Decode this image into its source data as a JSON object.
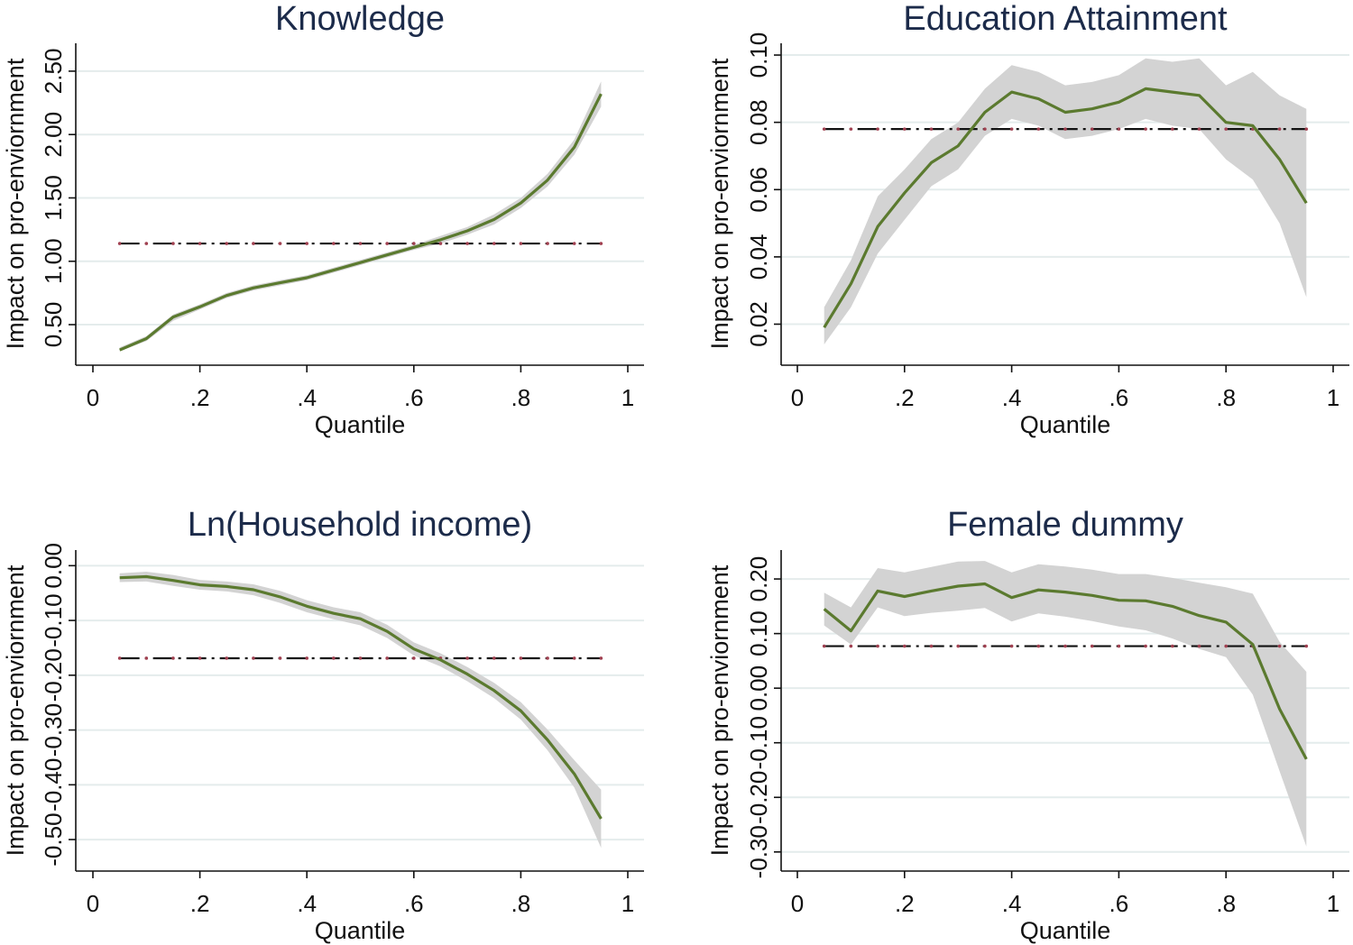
{
  "colors": {
    "line": "#5b7a2f",
    "band": "#d3d3d3",
    "grid": "#e4ecec",
    "ols_line": "#111111",
    "ols_dots": "#a04050",
    "title": "#1c2b4a",
    "axis": "#111111"
  },
  "chart_data": [
    {
      "type": "line",
      "title": "Knowledge",
      "xlabel": "Quantile",
      "ylabel": "Impact on pro-enviornment",
      "xlim": [
        0,
        1
      ],
      "ylim": [
        0.18,
        2.72
      ],
      "x_ticks": [
        0,
        0.2,
        0.4,
        0.6,
        0.8,
        1
      ],
      "x_tick_labels": [
        "0",
        ".2",
        ".4",
        ".6",
        ".8",
        "1"
      ],
      "y_ticks": [
        0.5,
        1.0,
        1.5,
        2.0,
        2.5
      ],
      "y_tick_labels": [
        "0.50",
        "1.00",
        "1.50",
        "2.00",
        "2.50"
      ],
      "grid": true,
      "x": [
        0.05,
        0.1,
        0.15,
        0.2,
        0.25,
        0.3,
        0.35,
        0.4,
        0.45,
        0.5,
        0.55,
        0.6,
        0.65,
        0.7,
        0.75,
        0.8,
        0.85,
        0.9,
        0.95
      ],
      "y": [
        0.3,
        0.39,
        0.56,
        0.64,
        0.73,
        0.79,
        0.83,
        0.87,
        0.93,
        0.99,
        1.05,
        1.11,
        1.17,
        1.24,
        1.33,
        1.46,
        1.64,
        1.9,
        2.32
      ],
      "ci_lower": [
        0.29,
        0.37,
        0.53,
        0.62,
        0.71,
        0.77,
        0.81,
        0.85,
        0.91,
        0.97,
        1.03,
        1.09,
        1.14,
        1.21,
        1.29,
        1.42,
        1.59,
        1.84,
        2.22
      ],
      "ci_upper": [
        0.32,
        0.41,
        0.58,
        0.66,
        0.75,
        0.81,
        0.85,
        0.89,
        0.95,
        1.01,
        1.07,
        1.13,
        1.2,
        1.27,
        1.37,
        1.5,
        1.69,
        1.96,
        2.42
      ],
      "ols_value": 1.14
    },
    {
      "type": "line",
      "title": "Education Attainment",
      "xlabel": "Quantile",
      "ylabel": "Impact on pro-enviornment",
      "xlim": [
        0,
        1
      ],
      "ylim": [
        0.0078,
        0.1035
      ],
      "x_ticks": [
        0,
        0.2,
        0.4,
        0.6,
        0.8,
        1
      ],
      "x_tick_labels": [
        "0",
        ".2",
        ".4",
        ".6",
        ".8",
        "1"
      ],
      "y_ticks": [
        0.02,
        0.04,
        0.06,
        0.08,
        0.1
      ],
      "y_tick_labels": [
        "0.02",
        "0.04",
        "0.06",
        "0.08",
        "0.10"
      ],
      "grid": true,
      "x": [
        0.05,
        0.1,
        0.15,
        0.2,
        0.25,
        0.3,
        0.35,
        0.4,
        0.45,
        0.5,
        0.55,
        0.6,
        0.65,
        0.7,
        0.75,
        0.8,
        0.85,
        0.9,
        0.95
      ],
      "y": [
        0.019,
        0.032,
        0.049,
        0.059,
        0.068,
        0.073,
        0.083,
        0.089,
        0.087,
        0.083,
        0.084,
        0.086,
        0.09,
        0.089,
        0.088,
        0.08,
        0.079,
        0.069,
        0.056
      ],
      "ci_lower": [
        0.014,
        0.025,
        0.041,
        0.051,
        0.061,
        0.066,
        0.076,
        0.081,
        0.079,
        0.075,
        0.076,
        0.078,
        0.081,
        0.079,
        0.078,
        0.069,
        0.063,
        0.05,
        0.028
      ],
      "ci_upper": [
        0.025,
        0.039,
        0.058,
        0.066,
        0.075,
        0.08,
        0.09,
        0.097,
        0.095,
        0.091,
        0.092,
        0.094,
        0.099,
        0.098,
        0.099,
        0.091,
        0.095,
        0.088,
        0.084
      ],
      "ols_value": 0.078
    },
    {
      "type": "line",
      "title": "Ln(Household income)",
      "xlabel": "Quantile",
      "ylabel": "Impact on pro-enviornment",
      "xlim": [
        0,
        1
      ],
      "ylim": [
        -0.5575,
        0.0285
      ],
      "x_ticks": [
        0,
        0.2,
        0.4,
        0.6,
        0.8,
        1
      ],
      "x_tick_labels": [
        "0",
        ".2",
        ".4",
        ".6",
        ".8",
        "1"
      ],
      "y_ticks": [
        -0.5,
        -0.4,
        -0.3,
        -0.2,
        -0.1,
        0.0
      ],
      "y_tick_labels": [
        "-0.50",
        "-0.40",
        "-0.30",
        "-0.20",
        "-0.10",
        "0.00"
      ],
      "grid": true,
      "x": [
        0.05,
        0.1,
        0.15,
        0.2,
        0.25,
        0.3,
        0.35,
        0.4,
        0.45,
        0.5,
        0.55,
        0.6,
        0.65,
        0.7,
        0.75,
        0.8,
        0.85,
        0.9,
        0.95
      ],
      "y": [
        -0.022,
        -0.02,
        -0.027,
        -0.035,
        -0.038,
        -0.044,
        -0.057,
        -0.074,
        -0.087,
        -0.097,
        -0.12,
        -0.152,
        -0.172,
        -0.198,
        -0.228,
        -0.265,
        -0.318,
        -0.38,
        -0.462
      ],
      "ci_lower": [
        -0.03,
        -0.029,
        -0.037,
        -0.044,
        -0.047,
        -0.054,
        -0.068,
        -0.085,
        -0.098,
        -0.109,
        -0.132,
        -0.164,
        -0.184,
        -0.211,
        -0.242,
        -0.281,
        -0.337,
        -0.405,
        -0.515
      ],
      "ci_upper": [
        -0.014,
        -0.011,
        -0.017,
        -0.026,
        -0.029,
        -0.034,
        -0.046,
        -0.063,
        -0.076,
        -0.085,
        -0.108,
        -0.14,
        -0.16,
        -0.185,
        -0.214,
        -0.249,
        -0.299,
        -0.355,
        -0.409
      ],
      "ols_value": -0.169
    },
    {
      "type": "line",
      "title": "Female dummy",
      "xlabel": "Quantile",
      "ylabel": "Impact on pro-enviornment",
      "xlim": [
        0,
        1
      ],
      "ylim": [
        -0.335,
        0.253
      ],
      "x_ticks": [
        0,
        0.2,
        0.4,
        0.6,
        0.8,
        1
      ],
      "x_tick_labels": [
        "0",
        ".2",
        ".4",
        ".6",
        ".8",
        "1"
      ],
      "y_ticks": [
        -0.3,
        -0.2,
        -0.1,
        0.0,
        0.1,
        0.2
      ],
      "y_tick_labels": [
        "-0.30",
        "-0.20",
        "-0.10",
        "0.00",
        "0.10",
        "0.20"
      ],
      "grid": true,
      "x": [
        0.05,
        0.1,
        0.15,
        0.2,
        0.25,
        0.3,
        0.35,
        0.4,
        0.45,
        0.5,
        0.55,
        0.6,
        0.65,
        0.7,
        0.75,
        0.8,
        0.85,
        0.9,
        0.95
      ],
      "y": [
        0.145,
        0.105,
        0.178,
        0.168,
        0.178,
        0.187,
        0.191,
        0.166,
        0.18,
        0.176,
        0.17,
        0.161,
        0.16,
        0.15,
        0.133,
        0.121,
        0.08,
        -0.038,
        -0.13
      ],
      "ci_lower": [
        0.115,
        0.08,
        0.148,
        0.132,
        0.138,
        0.142,
        0.147,
        0.122,
        0.137,
        0.131,
        0.123,
        0.113,
        0.106,
        0.091,
        0.072,
        0.057,
        -0.012,
        -0.152,
        -0.29
      ],
      "ci_upper": [
        0.175,
        0.148,
        0.22,
        0.212,
        0.222,
        0.232,
        0.233,
        0.212,
        0.227,
        0.223,
        0.217,
        0.209,
        0.209,
        0.202,
        0.193,
        0.185,
        0.173,
        0.085,
        0.03
      ],
      "ols_value": 0.077
    }
  ]
}
